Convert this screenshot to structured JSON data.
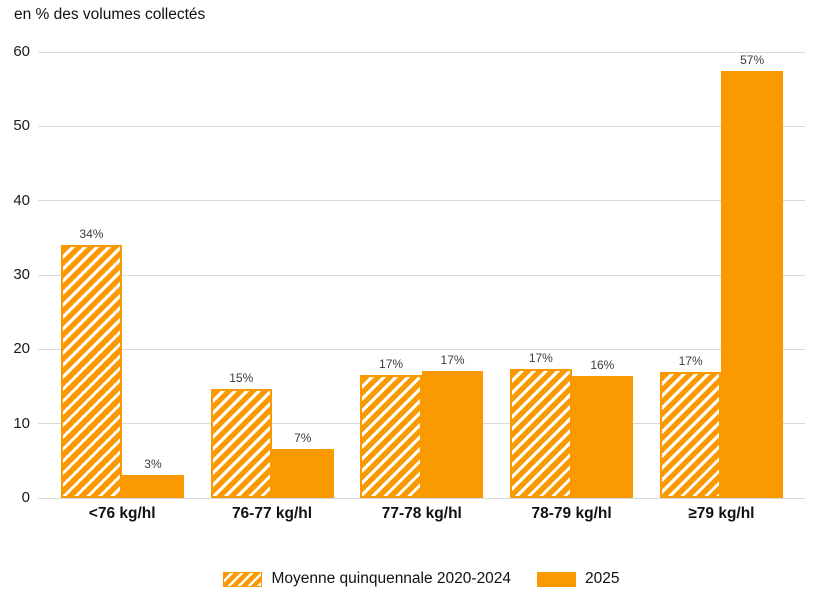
{
  "title": "en % des volumes collectés",
  "colors": {
    "accent": "#FB9A00",
    "grid": "#D8D8D8",
    "value_label": "#3C3C3C",
    "text": "#111111"
  },
  "chart_data": {
    "type": "bar",
    "title": "en % des volumes collectés",
    "xlabel": "",
    "ylabel": "en % des volumes collectés",
    "categories": [
      "<76 kg/hl",
      "76-77 kg/hl",
      "77-78 kg/hl",
      "78-79 kg/hl",
      "≥79 kg/hl"
    ],
    "series": [
      {
        "name": "Moyenne quinquennale 2020-2024",
        "style": "hatched",
        "values": [
          34,
          14.7,
          16.6,
          17.4,
          16.9
        ],
        "labels": [
          "34%",
          "15%",
          "17%",
          "17%",
          "17%"
        ]
      },
      {
        "name": "2025",
        "style": "solid",
        "values": [
          3.1,
          6.6,
          17.1,
          16.4,
          57.4
        ],
        "labels": [
          "3%",
          "7%",
          "17%",
          "16%",
          "57%"
        ]
      }
    ],
    "ylim": [
      0,
      60
    ],
    "yticks": [
      0,
      10,
      20,
      30,
      40,
      50,
      60
    ],
    "grid": true,
    "legend_position": "bottom"
  },
  "legend": {
    "items": [
      {
        "label": "Moyenne quinquennale 2020-2024",
        "style": "hatched"
      },
      {
        "label": "2025",
        "style": "solid"
      }
    ]
  }
}
